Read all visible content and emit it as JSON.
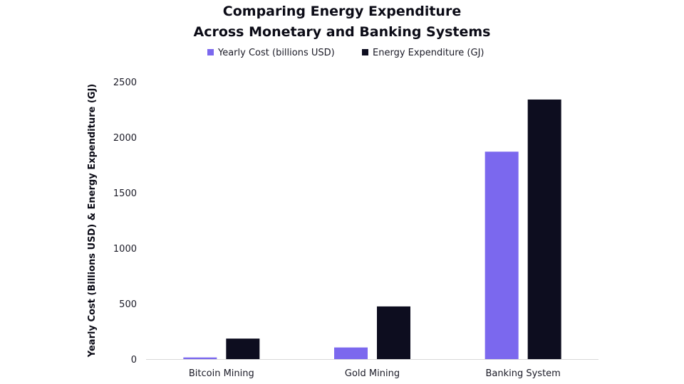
{
  "chart_data": {
    "type": "bar",
    "title_lines": [
      "Comparing Energy Expenditure",
      "Across Monetary and Banking Systems"
    ],
    "xlabel": "",
    "ylabel": "Yearly Cost (Billions USD) & Energy Expenditure (GJ)",
    "categories": [
      "Bitcoin Mining",
      "Gold Mining",
      "Banking System"
    ],
    "series": [
      {
        "name": "Yearly Cost (billions USD)",
        "color": "#7b68ee",
        "values": [
          15,
          105,
          1870
        ]
      },
      {
        "name": "Energy Expenditure (GJ)",
        "color": "#0d0d1f",
        "values": [
          185,
          475,
          2340
        ]
      }
    ],
    "ylim": [
      0,
      2500
    ],
    "yticks": [
      0,
      500,
      1000,
      1500,
      2000,
      2500
    ],
    "grid": false,
    "legend_position": "top-center"
  }
}
